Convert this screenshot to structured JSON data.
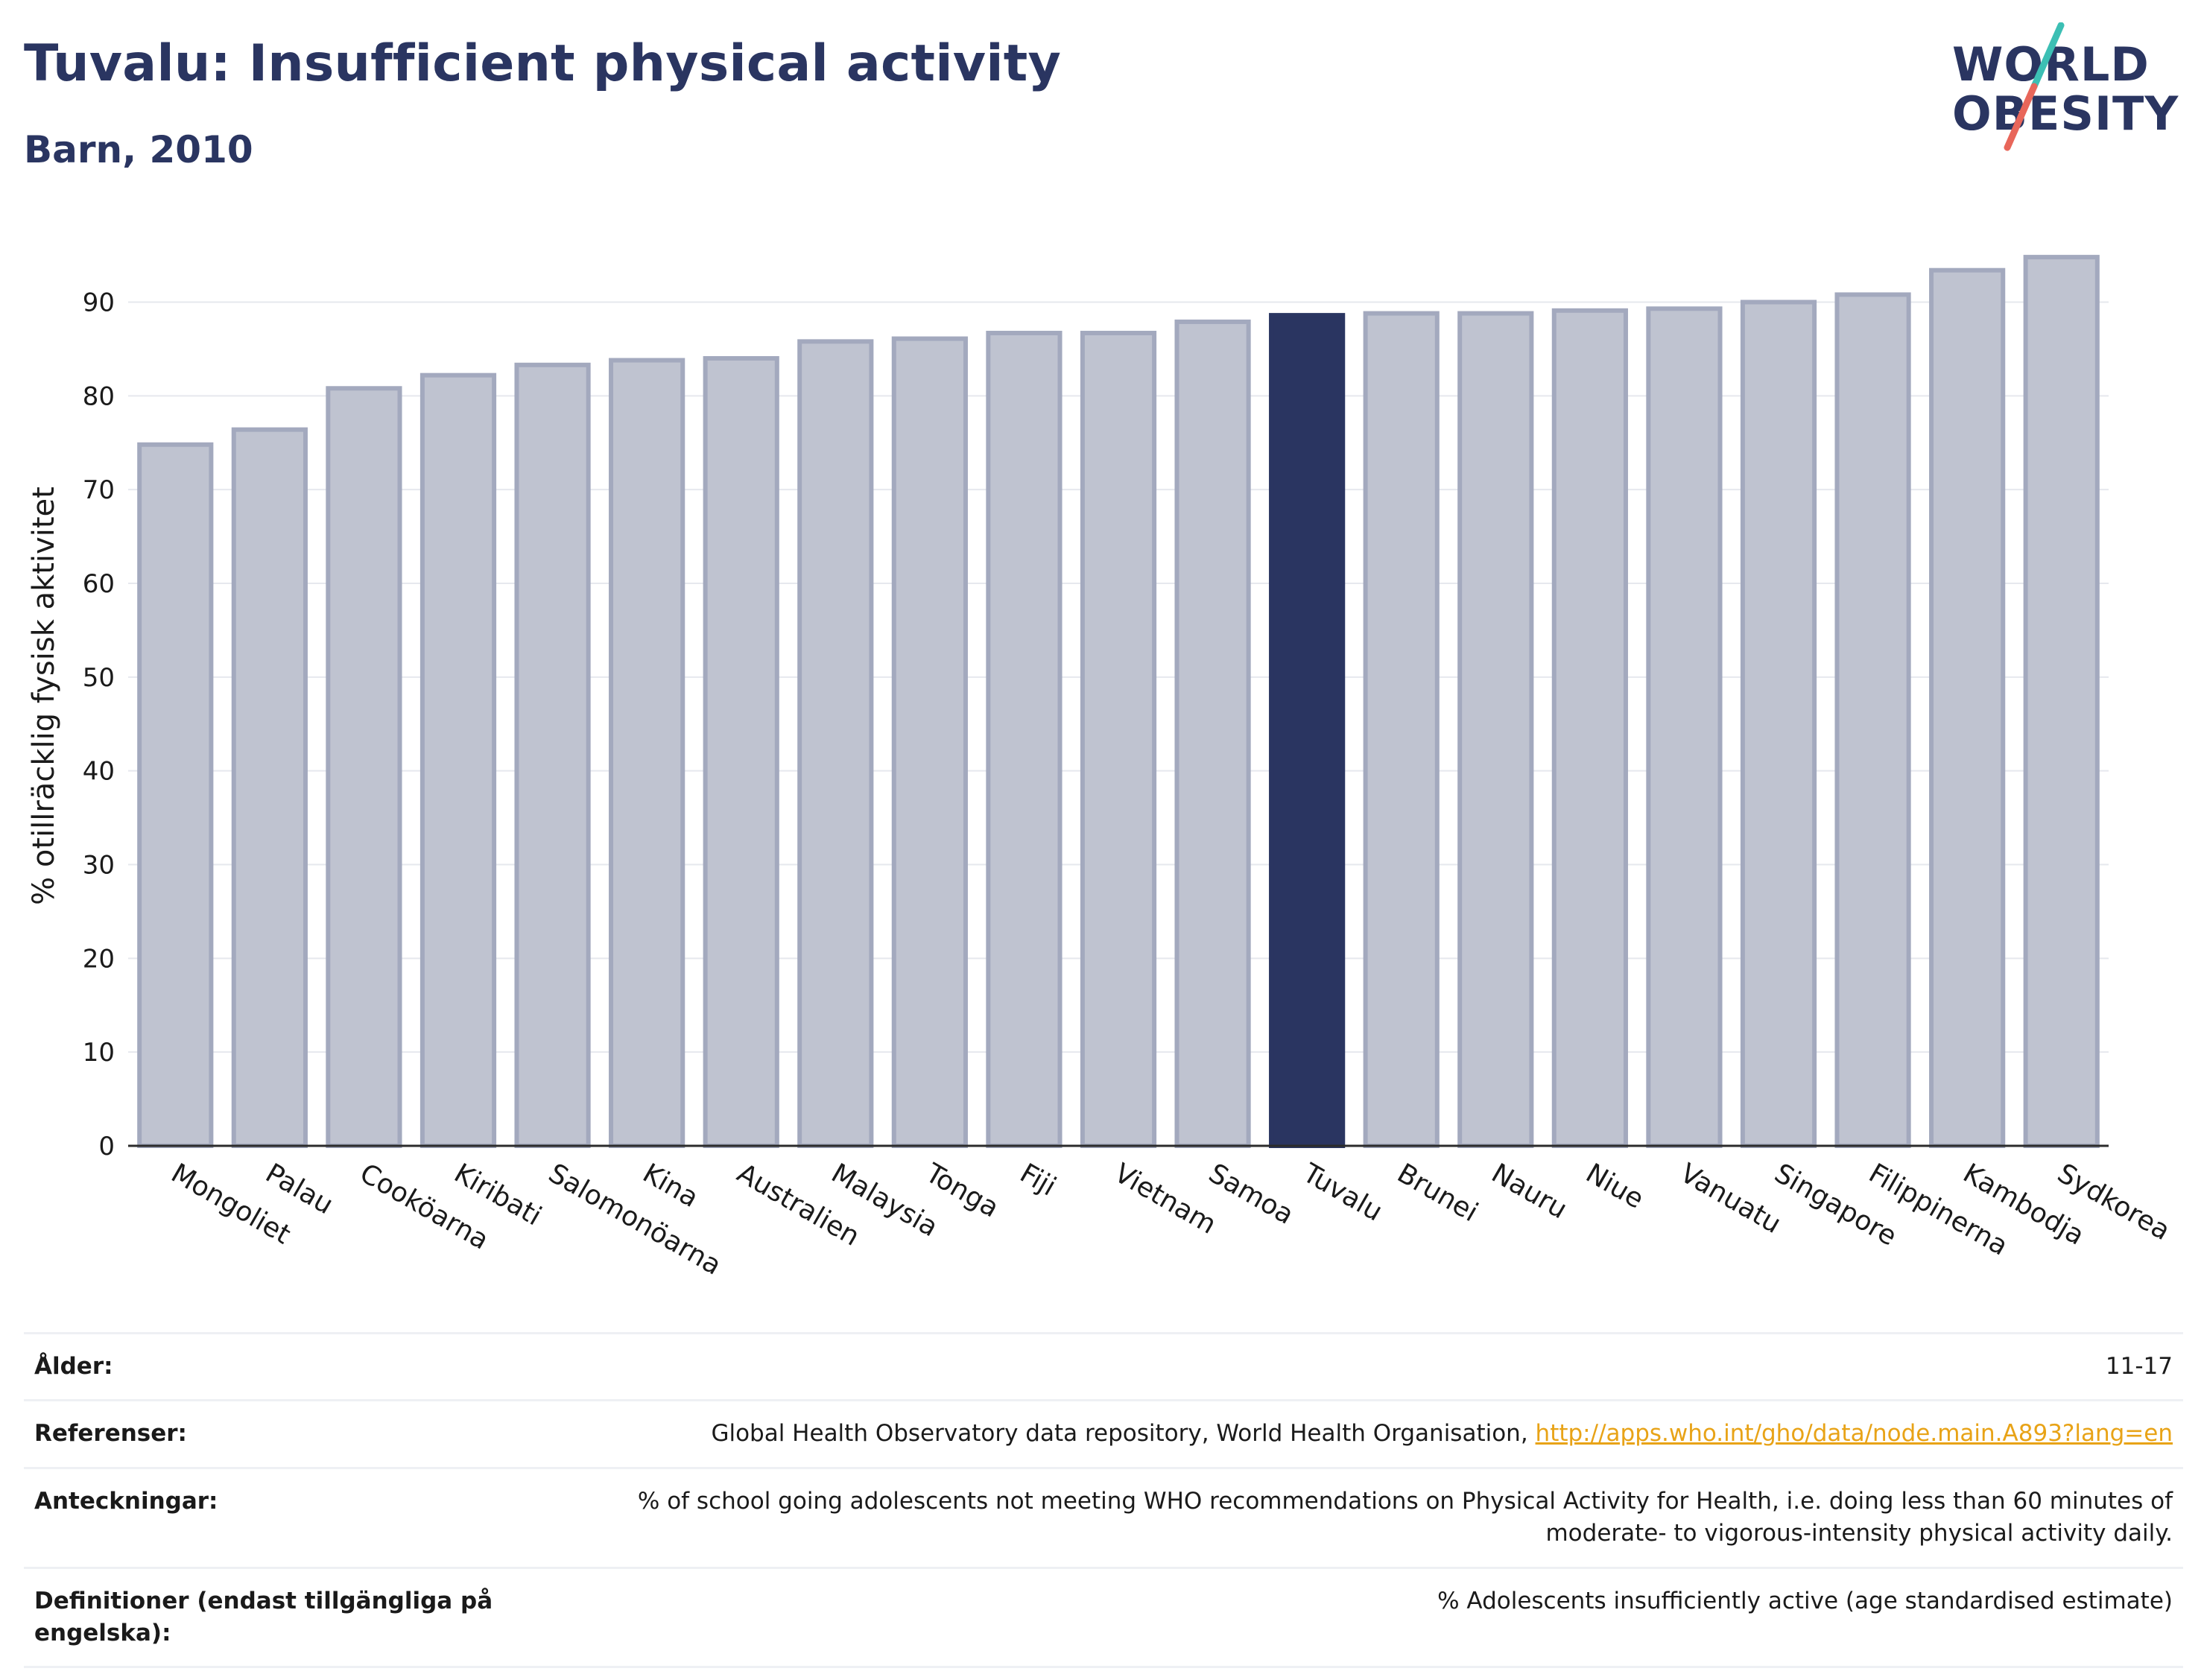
{
  "header": {
    "title": "Tuvalu: Insufficient physical activity",
    "subtitle": "Barn, 2010"
  },
  "logo": {
    "line1": "WORLD",
    "line2": "OBESITY",
    "accent_colors": [
      "#3cbfb4",
      "#e8665a"
    ]
  },
  "colors": {
    "highlight": "#2a3561",
    "bar": "#bfc3d0",
    "bar_border": "#a3a9be",
    "text_dark": "#2a3561",
    "link": "#e8a317"
  },
  "chart_data": {
    "type": "bar",
    "title": "Tuvalu: Insufficient physical activity",
    "subtitle": "Barn, 2010",
    "ylabel": "% otillräcklig fysisk aktivitet",
    "xlabel": "",
    "ylim": [
      0,
      96
    ],
    "yticks": [
      0,
      10,
      20,
      30,
      40,
      50,
      60,
      70,
      80,
      90
    ],
    "grid": true,
    "highlight": "Tuvalu",
    "categories": [
      "Mongoliet",
      "Palau",
      "Cooköarna",
      "Kiribati",
      "Salomonöarna",
      "Kina",
      "Australien",
      "Malaysia",
      "Tonga",
      "Fiji",
      "Vietnam",
      "Samoa",
      "Tuvalu",
      "Brunei",
      "Nauru",
      "Niue",
      "Vanuatu",
      "Singapore",
      "Filippinerna",
      "Kambodja",
      "Sydkorea"
    ],
    "values": [
      74.8,
      76.4,
      80.8,
      82.2,
      83.3,
      83.8,
      84.0,
      85.8,
      86.1,
      86.7,
      86.7,
      87.9,
      88.6,
      88.8,
      88.8,
      89.1,
      89.3,
      90.0,
      90.8,
      93.4,
      94.8
    ]
  },
  "info": [
    {
      "label": "Ålder:",
      "value": "11-17"
    },
    {
      "label": "Referenser:",
      "value": "Global Health Observatory data repository, World Health Organisation, ",
      "link": "http://apps.who.int/gho/data/node.main.A893?lang=en"
    },
    {
      "label": "Anteckningar:",
      "value": "% of school going adolescents not meeting WHO recommendations on Physical Activity for Health, i.e. doing less than 60 minutes of moderate- to vigorous-intensity physical activity daily."
    },
    {
      "label": "Definitioner (endast tillgängliga på engelska):",
      "value": "% Adolescents insufficiently active (age standardised estimate)"
    }
  ]
}
